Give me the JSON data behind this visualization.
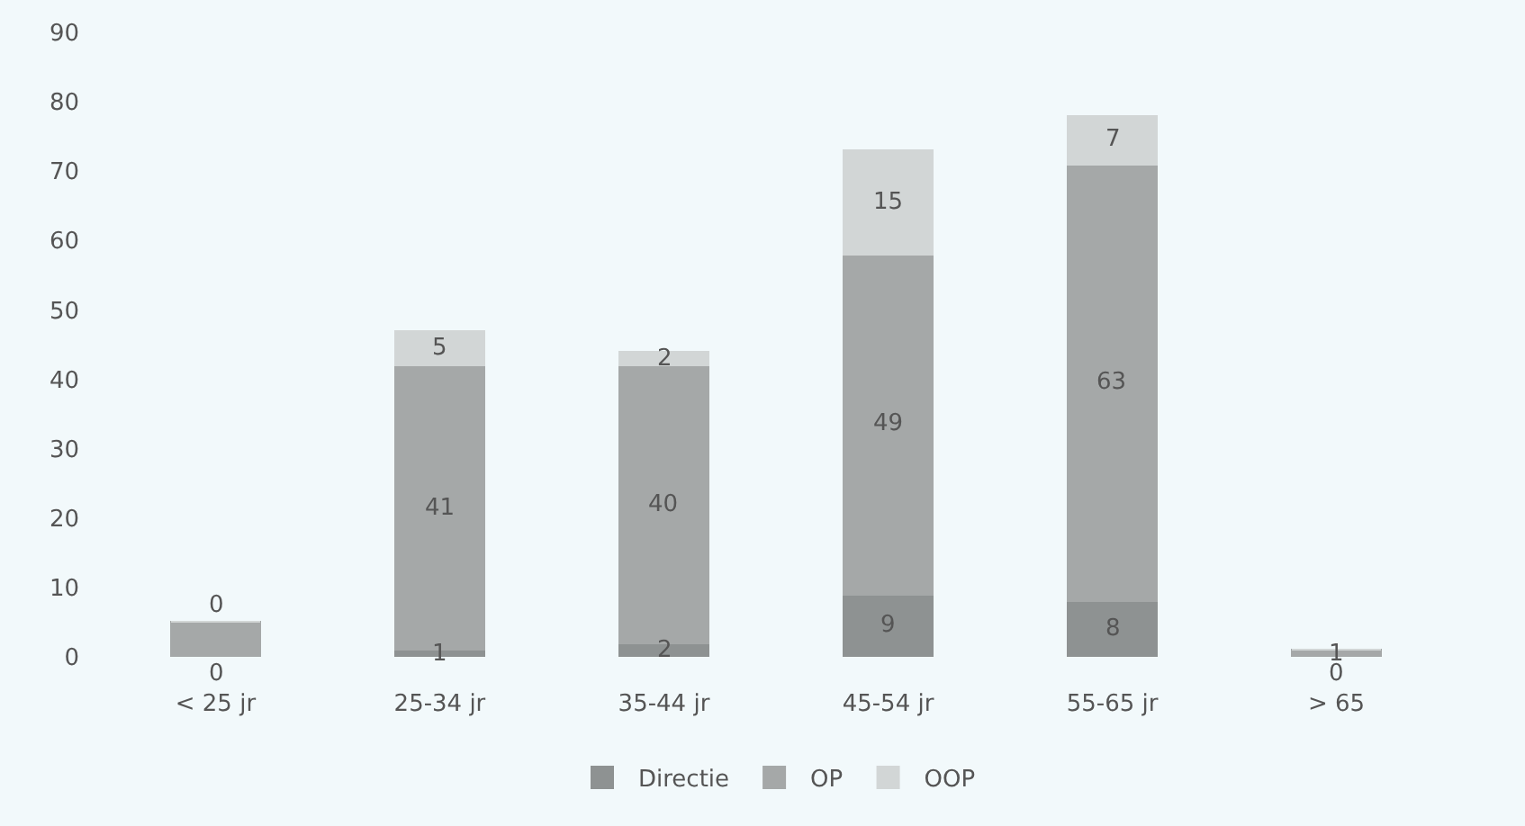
{
  "chart_data": {
    "type": "bar",
    "stacked": true,
    "categories": [
      "< 25 jr",
      "25-34 jr",
      "35-44 jr",
      "45-54 jr",
      "55-65 jr",
      "> 65"
    ],
    "series": [
      {
        "name": "Directie",
        "color": "#8e9292",
        "values": [
          0,
          1,
          2,
          9,
          8,
          0
        ],
        "value_labels": [
          "0",
          "1",
          "2",
          "9",
          "8",
          "0"
        ]
      },
      {
        "name": "OP",
        "color": "#a5a8a8",
        "values": [
          5,
          41,
          40,
          49,
          63,
          1
        ],
        "value_labels": [
          null,
          "41",
          "40",
          "49",
          "63",
          "1"
        ]
      },
      {
        "name": "OOP",
        "color": "#d2d6d6",
        "values": [
          0,
          5,
          2,
          15,
          7,
          0
        ],
        "value_labels": [
          "0",
          "5",
          "2",
          "15",
          "7",
          null
        ]
      }
    ],
    "ylim": [
      0,
      90
    ],
    "yticks": [
      0,
      10,
      20,
      30,
      40,
      50,
      60,
      70,
      80,
      90
    ],
    "grid": false,
    "legend": "bottom"
  }
}
